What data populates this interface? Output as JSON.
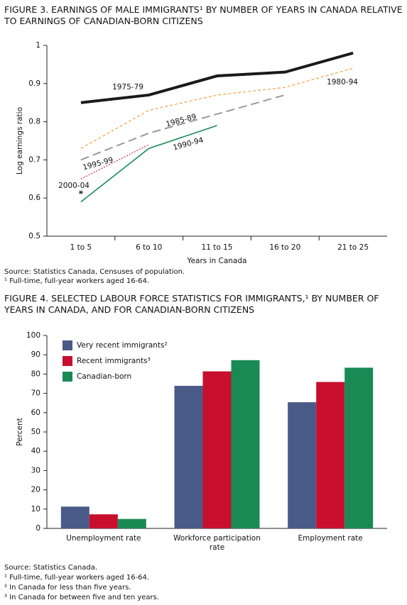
{
  "chart_data": [
    {
      "type": "line",
      "title": "FIGURE 3. EARNINGS OF MALE IMMIGRANTS¹ BY NUMBER OF YEARS IN CANADA RELATIVE TO EARNINGS OF CANADIAN-BORN CITIZENS",
      "x_label": "Years in Canada",
      "y_label": "Log earnings ratio",
      "categories": [
        "1 to 5",
        "6 to 10",
        "11 to 15",
        "16 to 20",
        "21 to 25"
      ],
      "ylim": [
        0.5,
        1
      ],
      "yticks": [
        0.5,
        0.6,
        0.7,
        0.8,
        0.9,
        1
      ],
      "series": [
        {
          "name": "1975-79",
          "color": "#1a1a1a",
          "values": [
            0.85,
            0.87,
            0.92,
            0.93,
            0.98
          ]
        },
        {
          "name": "1980-94",
          "color": "#f0a040",
          "values": [
            0.73,
            0.83,
            0.87,
            0.89,
            0.94
          ]
        },
        {
          "name": "1985-89",
          "color": "#999999",
          "values": [
            0.7,
            0.77,
            0.82,
            0.87,
            null
          ]
        },
        {
          "name": "1990-94",
          "color": "#1a8a55",
          "values": [
            0.59,
            0.73,
            0.79,
            null,
            null
          ]
        },
        {
          "name": "1995-99",
          "color": "#c0305a",
          "values": [
            0.65,
            0.74,
            null,
            null,
            null
          ]
        },
        {
          "name": "2000-04",
          "color": "#1a1a1a",
          "marker": "asterisk",
          "values": [
            0.615,
            null,
            null,
            null,
            null
          ]
        }
      ],
      "source": "Source: Statistics Canada, Censuses of population.",
      "footnotes": [
        "¹ Full-time, full-year workers aged 16-64."
      ]
    },
    {
      "type": "bar",
      "title": "FIGURE 4. SELECTED LABOUR FORCE STATISTICS FOR IMMIGRANTS,¹ BY NUMBER OF YEARS IN CANADA, AND FOR CANADIAN-BORN CITIZENS",
      "y_label": "Percent",
      "categories": [
        "Unemployment rate",
        "Workforce participation rate",
        "Employment rate"
      ],
      "ylim": [
        0,
        100
      ],
      "yticks": [
        0,
        10,
        20,
        30,
        40,
        50,
        60,
        70,
        80,
        90,
        100
      ],
      "legend": "top-left",
      "series": [
        {
          "name": "Very recent immigrants²",
          "color": "#4a5a88",
          "values": [
            11.3,
            73.9,
            65.4
          ]
        },
        {
          "name": "Recent immigrants³",
          "color": "#c8102e",
          "values": [
            7.3,
            81.4,
            75.9
          ]
        },
        {
          "name": "Canadian-born",
          "color": "#1a8a55",
          "values": [
            4.9,
            87.2,
            83.3
          ]
        }
      ],
      "source": "Source: Statistics Canada.",
      "footnotes": [
        "¹ Full-time, full-year workers aged 16-64.",
        "² In Canada for less than five years.",
        "³ In Canada for between five and ten years."
      ]
    }
  ]
}
